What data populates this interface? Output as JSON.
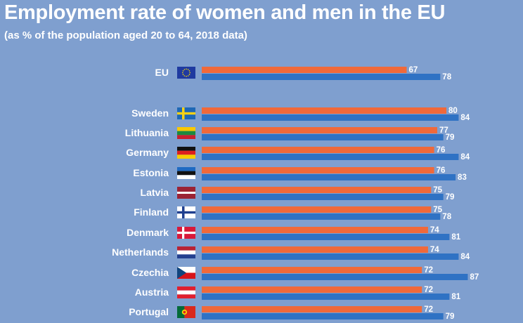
{
  "title": "Employment rate of women and men in the EU",
  "subtitle": "(as % of the population aged 20 to 64, 2018 data)",
  "colors": {
    "background": "#7f9fcf",
    "women": "#f0693a",
    "men": "#2f72c4",
    "text": "#ffffff"
  },
  "chart_data": {
    "type": "bar",
    "orientation": "horizontal",
    "title": "Employment rate of women and men in the EU",
    "subtitle": "(as % of the population aged 20 to 64, 2018 data)",
    "categories": [
      "EU",
      "Sweden",
      "Lithuania",
      "Germany",
      "Estonia",
      "Latvia",
      "Finland",
      "Denmark",
      "Netherlands",
      "Czechia",
      "Austria",
      "Portugal"
    ],
    "flags": [
      "eu-flag-icon",
      "sweden-flag-icon",
      "lithuania-flag-icon",
      "germany-flag-icon",
      "estonia-flag-icon",
      "latvia-flag-icon",
      "finland-flag-icon",
      "denmark-flag-icon",
      "netherlands-flag-icon",
      "czechia-flag-icon",
      "austria-flag-icon",
      "portugal-flag-icon"
    ],
    "series": [
      {
        "values": [
          67,
          80,
          77,
          76,
          76,
          75,
          75,
          74,
          74,
          72,
          72,
          72
        ],
        "color": "#f0693a"
      },
      {
        "values": [
          78,
          84,
          79,
          84,
          83,
          79,
          78,
          81,
          84,
          87,
          81,
          79
        ],
        "color": "#2f72c4"
      }
    ],
    "grid": false,
    "legend": "none"
  }
}
